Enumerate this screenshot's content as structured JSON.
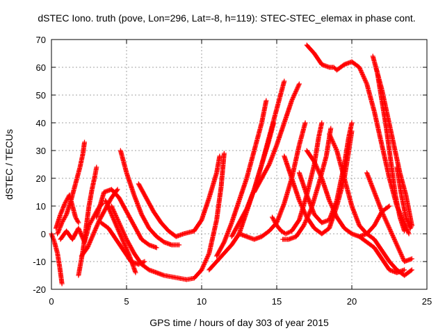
{
  "chart_data": {
    "type": "scatter",
    "title": "dSTEC Iono. truth (pove, Lon=296, Lat=-8, h=119): STEC-STEC_elemax in phase cont.",
    "xlabel": "GPS time / hours of day 303 of year 2015",
    "ylabel": "dSTEC  / TECUs",
    "xlim": [
      0,
      25
    ],
    "ylim": [
      -20,
      70
    ],
    "xticks": [
      0,
      5,
      10,
      15,
      20,
      25
    ],
    "yticks": [
      -20,
      -10,
      0,
      10,
      20,
      30,
      40,
      50,
      60,
      70
    ],
    "grid": true,
    "marker": "+",
    "series_color": "#ff0000",
    "series": [
      {
        "points": [
          [
            0.0,
            0
          ],
          [
            0.2,
            -3
          ],
          [
            0.4,
            -7
          ],
          [
            0.55,
            -12
          ],
          [
            0.7,
            -18
          ]
        ]
      },
      {
        "points": [
          [
            0.3,
            2
          ],
          [
            0.6,
            7
          ],
          [
            0.9,
            11
          ],
          [
            1.2,
            14
          ],
          [
            1.4,
            10
          ],
          [
            1.6,
            6
          ],
          [
            1.8,
            4
          ]
        ]
      },
      {
        "points": [
          [
            0.4,
            0
          ],
          [
            0.7,
            4
          ],
          [
            1.0,
            7
          ],
          [
            1.3,
            12
          ],
          [
            1.6,
            18
          ],
          [
            1.9,
            24
          ],
          [
            2.1,
            29
          ],
          [
            2.2,
            33
          ]
        ]
      },
      {
        "points": [
          [
            1.8,
            -15
          ],
          [
            2.1,
            -6
          ],
          [
            2.3,
            2
          ],
          [
            2.5,
            10
          ],
          [
            2.7,
            16
          ],
          [
            2.9,
            21
          ],
          [
            3.0,
            24
          ]
        ]
      },
      {
        "points": [
          [
            0.6,
            -2
          ],
          [
            1.0,
            1
          ],
          [
            1.4,
            -2
          ],
          [
            1.8,
            2
          ],
          [
            2.2,
            -3
          ],
          [
            2.5,
            3
          ],
          [
            2.8,
            6
          ],
          [
            3.1,
            9
          ],
          [
            3.4,
            11
          ]
        ]
      },
      {
        "points": [
          [
            2.0,
            -8
          ],
          [
            2.4,
            -5
          ],
          [
            2.8,
            0
          ],
          [
            3.2,
            5
          ],
          [
            3.6,
            9
          ],
          [
            4.0,
            13
          ],
          [
            4.4,
            16
          ]
        ]
      },
      {
        "points": [
          [
            3.0,
            6
          ],
          [
            3.5,
            15
          ],
          [
            4.0,
            16
          ],
          [
            4.5,
            13
          ],
          [
            5.0,
            8
          ],
          [
            5.5,
            3
          ],
          [
            6.0,
            -2
          ],
          [
            6.5,
            -4
          ],
          [
            7.0,
            -5
          ]
        ]
      },
      {
        "points": [
          [
            3.3,
            4
          ],
          [
            3.8,
            2
          ],
          [
            4.3,
            -2
          ],
          [
            4.8,
            -6
          ],
          [
            5.3,
            -10
          ],
          [
            5.8,
            -11
          ],
          [
            6.2,
            -10
          ]
        ]
      },
      {
        "points": [
          [
            3.6,
            12
          ],
          [
            4.0,
            7
          ],
          [
            4.4,
            2
          ],
          [
            4.8,
            -3
          ],
          [
            5.2,
            -8
          ],
          [
            5.6,
            -14
          ]
        ]
      },
      {
        "points": [
          [
            4.6,
            30
          ],
          [
            5.0,
            22
          ],
          [
            5.5,
            14
          ],
          [
            6.0,
            7
          ],
          [
            6.5,
            2
          ],
          [
            7.0,
            -1
          ],
          [
            7.5,
            -3
          ],
          [
            8.0,
            -4
          ],
          [
            8.5,
            -4
          ]
        ]
      },
      {
        "points": [
          [
            5.8,
            18
          ],
          [
            6.3,
            13
          ],
          [
            6.8,
            8
          ],
          [
            7.3,
            4
          ],
          [
            7.8,
            1
          ],
          [
            8.3,
            -1
          ],
          [
            8.8,
            0
          ],
          [
            9.5,
            1
          ],
          [
            10.0,
            5
          ],
          [
            10.5,
            13
          ],
          [
            11.0,
            22
          ],
          [
            11.2,
            28
          ]
        ]
      },
      {
        "points": [
          [
            4.0,
            10
          ],
          [
            4.5,
            4
          ],
          [
            5.0,
            -2
          ],
          [
            5.5,
            -7
          ],
          [
            6.0,
            -11
          ],
          [
            6.5,
            -13
          ],
          [
            7.0,
            -14
          ],
          [
            7.5,
            -15
          ],
          [
            8.0,
            -15.5
          ],
          [
            8.5,
            -16
          ],
          [
            9.0,
            -16.5
          ],
          [
            9.5,
            -16
          ],
          [
            10.0,
            -13
          ],
          [
            10.5,
            -7
          ],
          [
            11.0,
            5
          ],
          [
            11.3,
            17
          ],
          [
            11.5,
            29
          ]
        ]
      },
      {
        "points": [
          [
            10.5,
            -13
          ],
          [
            11.0,
            -10
          ],
          [
            11.5,
            -7
          ],
          [
            12.0,
            -4
          ],
          [
            12.5,
            0
          ],
          [
            13.0,
            8
          ],
          [
            13.5,
            16
          ],
          [
            14.0,
            25
          ],
          [
            14.4,
            32
          ],
          [
            14.8,
            40
          ]
        ]
      },
      {
        "points": [
          [
            11.0,
            -8
          ],
          [
            11.5,
            -3
          ],
          [
            12.0,
            4
          ],
          [
            12.5,
            12
          ],
          [
            13.0,
            20
          ],
          [
            13.5,
            30
          ],
          [
            14.0,
            40
          ],
          [
            14.3,
            48
          ]
        ]
      },
      {
        "points": [
          [
            12.0,
            -1
          ],
          [
            12.5,
            4
          ],
          [
            13.0,
            9
          ],
          [
            13.5,
            16
          ],
          [
            14.0,
            25
          ],
          [
            14.5,
            35
          ],
          [
            15.0,
            45
          ],
          [
            15.5,
            55
          ]
        ]
      },
      {
        "points": [
          [
            12.5,
            0
          ],
          [
            13.0,
            -1
          ],
          [
            13.5,
            -2
          ],
          [
            14.0,
            -1
          ],
          [
            14.5,
            1
          ],
          [
            15.0,
            4
          ],
          [
            15.5,
            11
          ],
          [
            16.0,
            20
          ],
          [
            16.5,
            32
          ],
          [
            16.9,
            40
          ]
        ]
      },
      {
        "points": [
          [
            13.5,
            15
          ],
          [
            14.0,
            20
          ],
          [
            14.5,
            25
          ],
          [
            15.0,
            32
          ],
          [
            15.5,
            40
          ],
          [
            16.0,
            48
          ],
          [
            16.5,
            54
          ]
        ]
      },
      {
        "points": [
          [
            14.7,
            6
          ],
          [
            15.0,
            3
          ],
          [
            15.3,
            1
          ],
          [
            15.6,
            0
          ],
          [
            16.0,
            1
          ],
          [
            16.5,
            5
          ],
          [
            17.0,
            14
          ],
          [
            17.5,
            25
          ],
          [
            17.8,
            35
          ],
          [
            18.0,
            40
          ]
        ]
      },
      {
        "points": [
          [
            15.4,
            -2
          ],
          [
            15.8,
            -2
          ],
          [
            16.3,
            -1
          ],
          [
            16.8,
            3
          ],
          [
            17.3,
            9
          ],
          [
            17.8,
            18
          ],
          [
            18.3,
            28
          ],
          [
            18.6,
            38
          ]
        ]
      },
      {
        "points": [
          [
            15.5,
            28
          ],
          [
            16.0,
            20
          ],
          [
            16.5,
            12
          ],
          [
            17.0,
            6
          ],
          [
            17.5,
            2
          ],
          [
            18.0,
            0
          ],
          [
            18.5,
            2
          ],
          [
            19.0,
            10
          ],
          [
            19.5,
            20
          ],
          [
            19.8,
            30
          ],
          [
            20.0,
            37
          ]
        ]
      },
      {
        "points": [
          [
            16.5,
            22
          ],
          [
            17.0,
            14
          ],
          [
            17.5,
            7
          ],
          [
            18.0,
            4
          ],
          [
            18.5,
            5
          ],
          [
            19.0,
            12
          ],
          [
            19.5,
            25
          ],
          [
            19.8,
            35
          ],
          [
            20.0,
            40
          ]
        ]
      },
      {
        "points": [
          [
            17.0,
            30
          ],
          [
            17.5,
            26
          ],
          [
            18.0,
            20
          ],
          [
            18.5,
            12
          ],
          [
            19.0,
            6
          ],
          [
            19.5,
            2
          ],
          [
            20.0,
            0
          ],
          [
            20.5,
            -1
          ],
          [
            21.0,
            0
          ],
          [
            21.5,
            3
          ],
          [
            22.0,
            8
          ],
          [
            22.5,
            10
          ]
        ]
      },
      {
        "points": [
          [
            18.5,
            36
          ],
          [
            19.0,
            30
          ],
          [
            19.5,
            20
          ],
          [
            20.0,
            10
          ],
          [
            20.5,
            3
          ],
          [
            21.0,
            0
          ],
          [
            21.5,
            -2
          ],
          [
            22.0,
            -6
          ],
          [
            22.5,
            -10
          ],
          [
            23.0,
            -13
          ],
          [
            23.5,
            -15
          ],
          [
            24.0,
            -13
          ]
        ]
      },
      {
        "points": [
          [
            17.0,
            68
          ],
          [
            17.5,
            65
          ],
          [
            18.0,
            61
          ],
          [
            18.5,
            60
          ],
          [
            18.8,
            60
          ],
          [
            19.0,
            59
          ],
          [
            19.5,
            61
          ],
          [
            20.0,
            62
          ],
          [
            20.5,
            60
          ],
          [
            21.0,
            54
          ],
          [
            21.5,
            44
          ],
          [
            22.0,
            32
          ],
          [
            22.5,
            20
          ],
          [
            23.0,
            10
          ],
          [
            23.5,
            4
          ],
          [
            23.8,
            0
          ]
        ]
      },
      {
        "points": [
          [
            21.4,
            64
          ],
          [
            21.7,
            58
          ],
          [
            22.0,
            48
          ],
          [
            22.3,
            38
          ],
          [
            22.6,
            26
          ],
          [
            22.9,
            14
          ],
          [
            23.2,
            6
          ],
          [
            23.5,
            1
          ]
        ]
      },
      {
        "points": [
          [
            21.6,
            60
          ],
          [
            22.0,
            52
          ],
          [
            22.4,
            42
          ],
          [
            22.8,
            32
          ],
          [
            23.2,
            22
          ],
          [
            23.6,
            14
          ],
          [
            24.0,
            3
          ]
        ]
      },
      {
        "points": [
          [
            21.0,
            22
          ],
          [
            21.5,
            15
          ],
          [
            22.0,
            8
          ],
          [
            22.5,
            2
          ],
          [
            23.0,
            -4
          ],
          [
            23.5,
            -10
          ],
          [
            24.0,
            -9
          ]
        ]
      },
      {
        "points": [
          [
            20.5,
            -1
          ],
          [
            21.0,
            -3
          ],
          [
            21.5,
            -5
          ],
          [
            22.0,
            -9
          ],
          [
            22.5,
            -13
          ],
          [
            23.0,
            -14
          ],
          [
            23.5,
            -13
          ]
        ]
      },
      {
        "points": [
          [
            23.0,
            24
          ],
          [
            23.3,
            14
          ],
          [
            23.6,
            6
          ],
          [
            23.9,
            2
          ],
          [
            24.0,
            3
          ]
        ]
      }
    ]
  }
}
